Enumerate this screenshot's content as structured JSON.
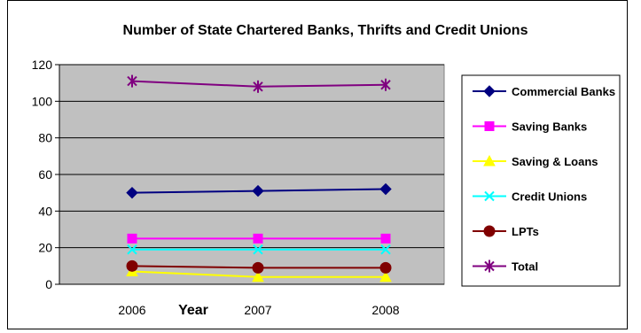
{
  "chart_data": {
    "type": "line",
    "title": "Number of State Chartered Banks, Thrifts and Credit Unions",
    "xlabel": "Year",
    "ylabel": "",
    "categories": [
      "2006",
      "2007",
      "2008"
    ],
    "ylim": [
      0,
      120
    ],
    "yticks": [
      "0",
      "20",
      "40",
      "60",
      "80",
      "100",
      "120"
    ],
    "grid": true,
    "plot_background": "#c0c0c0",
    "legend_position": "right",
    "series": [
      {
        "name": "Commercial Banks",
        "values": [
          50,
          51,
          52
        ],
        "color": "#000080",
        "marker": "diamond"
      },
      {
        "name": "Saving Banks",
        "values": [
          25,
          25,
          25
        ],
        "color": "#ff00ff",
        "marker": "square"
      },
      {
        "name": "Saving & Loans",
        "values": [
          7,
          4,
          4
        ],
        "color": "#ffff00",
        "marker": "triangle"
      },
      {
        "name": "Credit Unions",
        "values": [
          19,
          19,
          19
        ],
        "color": "#00ffff",
        "marker": "x"
      },
      {
        "name": "LPTs",
        "values": [
          10,
          9,
          9
        ],
        "color": "#800000",
        "marker": "circle"
      },
      {
        "name": "Total",
        "values": [
          111,
          108,
          109
        ],
        "color": "#800080",
        "marker": "star"
      }
    ]
  }
}
